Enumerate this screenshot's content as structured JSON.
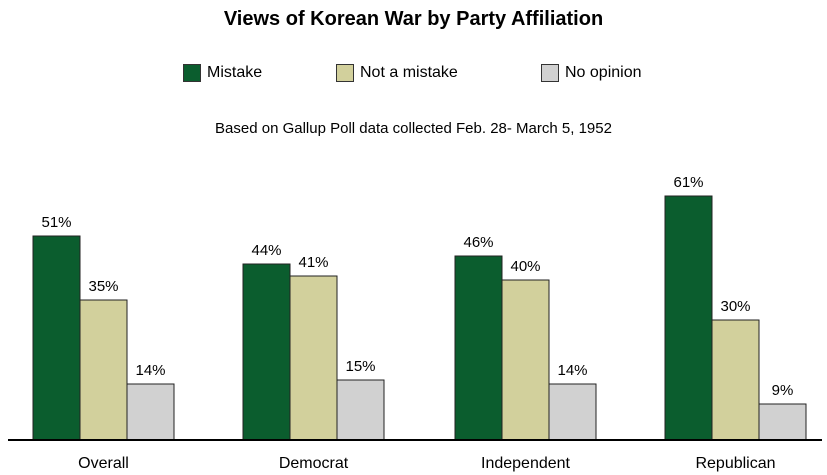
{
  "chart_data": {
    "type": "bar",
    "title": "Views of Korean War by Party Affiliation",
    "subtitle": "Based on Gallup Poll data collected Feb. 28- March 5, 1952",
    "categories": [
      "Overall",
      "Democrat",
      "Independent",
      "Republican"
    ],
    "series": [
      {
        "name": "Mistake",
        "values": [
          51,
          44,
          46,
          61
        ],
        "color": "#0b5d2e"
      },
      {
        "name": "Not a mistake",
        "values": [
          35,
          41,
          40,
          30
        ],
        "color": "#d2d09c"
      },
      {
        "name": "No opinion",
        "values": [
          14,
          15,
          14,
          9
        ],
        "color": "#d1d1d1"
      }
    ],
    "value_suffix": "%",
    "ylim": [
      0,
      70
    ],
    "legend_position": "top-center",
    "grid": false
  }
}
